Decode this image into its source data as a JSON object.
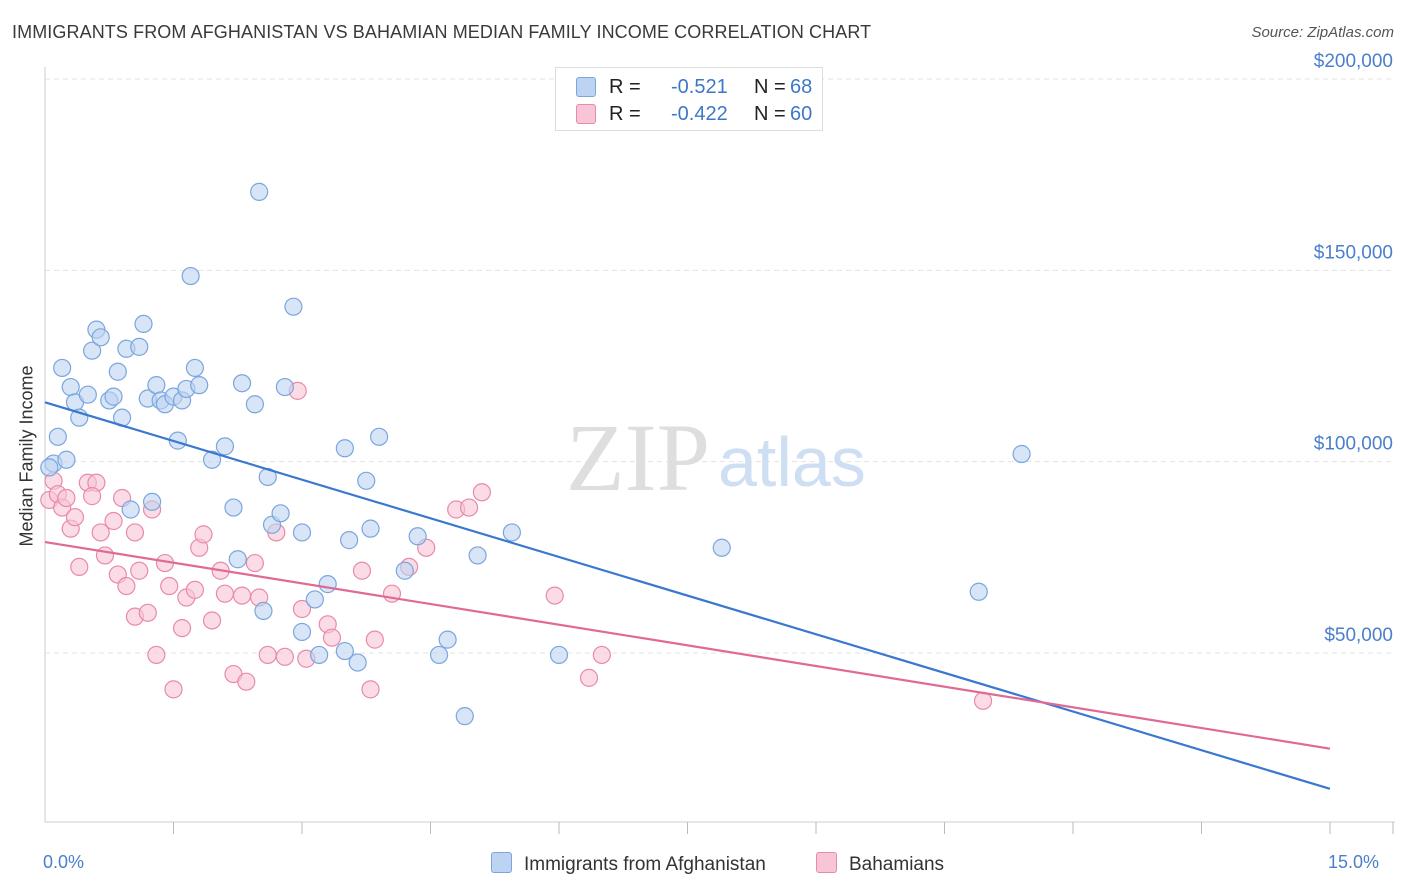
{
  "title": "IMMIGRANTS FROM AFGHANISTAN VS BAHAMIAN MEDIAN FAMILY INCOME CORRELATION CHART",
  "source": "Source: ZipAtlas.com",
  "watermark": {
    "zip": "ZIP",
    "atlas": "atlas"
  },
  "legend": {
    "r_label": "R =",
    "n_label": "N =",
    "rows": [
      {
        "r": "-0.521",
        "n": "68",
        "fill": "#bcd4f2",
        "stroke": "#7aa6de"
      },
      {
        "r": "-0.422",
        "n": "60",
        "fill": "#f8c5d6",
        "stroke": "#e88aaa"
      }
    ]
  },
  "bottom_legend": [
    {
      "label": "Immigrants from Afghanistan",
      "fill": "#bcd4f2",
      "stroke": "#7aa6de"
    },
    {
      "label": "Bahamians",
      "fill": "#f8c5d6",
      "stroke": "#e88aaa"
    }
  ],
  "chart_data": {
    "type": "scatter",
    "title": "IMMIGRANTS FROM AFGHANISTAN VS BAHAMIAN MEDIAN FAMILY INCOME CORRELATION CHART",
    "xlabel": "",
    "ylabel": "Median Family Income",
    "xlim": [
      0,
      15
    ],
    "ylim": [
      0,
      205000
    ],
    "x_tick_labels": {
      "left": "0.0%",
      "right": "15.0%"
    },
    "y_ticks": [
      {
        "value": 50000,
        "label": "$50,000"
      },
      {
        "value": 100000,
        "label": "$100,000"
      },
      {
        "value": 150000,
        "label": "$150,000"
      },
      {
        "value": 200000,
        "label": "$200,000"
      }
    ],
    "grid": true,
    "series": [
      {
        "name": "Immigrants from Afghanistan",
        "color": "#3a78d0",
        "marker_fill": "#bcd4f2",
        "marker_stroke": "#7aa6de",
        "trend": {
          "x": [
            0,
            15
          ],
          "y": [
            115500,
            14500
          ]
        },
        "points": [
          [
            0.1,
            99500
          ],
          [
            0.15,
            106500
          ],
          [
            0.2,
            124500
          ],
          [
            0.25,
            100500
          ],
          [
            0.3,
            119500
          ],
          [
            0.35,
            115500
          ],
          [
            0.4,
            111500
          ],
          [
            0.5,
            117500
          ],
          [
            0.55,
            129000
          ],
          [
            0.6,
            134500
          ],
          [
            0.65,
            132500
          ],
          [
            0.75,
            116000
          ],
          [
            0.8,
            117000
          ],
          [
            0.85,
            123500
          ],
          [
            0.9,
            111500
          ],
          [
            0.95,
            129500
          ],
          [
            1.0,
            87500
          ],
          [
            1.1,
            130000
          ],
          [
            1.15,
            136000
          ],
          [
            1.2,
            116500
          ],
          [
            1.25,
            89500
          ],
          [
            1.3,
            120000
          ],
          [
            1.35,
            116000
          ],
          [
            1.4,
            115000
          ],
          [
            1.5,
            117000
          ],
          [
            1.55,
            105500
          ],
          [
            1.6,
            116000
          ],
          [
            1.65,
            119000
          ],
          [
            1.7,
            148500
          ],
          [
            1.75,
            124500
          ],
          [
            1.8,
            120000
          ],
          [
            1.95,
            100500
          ],
          [
            2.1,
            104000
          ],
          [
            2.2,
            88000
          ],
          [
            2.25,
            74500
          ],
          [
            2.3,
            120500
          ],
          [
            2.45,
            115000
          ],
          [
            2.5,
            170500
          ],
          [
            2.55,
            61000
          ],
          [
            2.6,
            96000
          ],
          [
            2.65,
            83500
          ],
          [
            2.75,
            86500
          ],
          [
            2.8,
            119500
          ],
          [
            2.9,
            140500
          ],
          [
            3.0,
            55500
          ],
          [
            3.0,
            81500
          ],
          [
            3.15,
            64000
          ],
          [
            3.2,
            49500
          ],
          [
            3.3,
            68000
          ],
          [
            3.5,
            50500
          ],
          [
            3.5,
            103500
          ],
          [
            3.55,
            79500
          ],
          [
            3.65,
            47500
          ],
          [
            3.75,
            95000
          ],
          [
            3.8,
            82500
          ],
          [
            3.9,
            106500
          ],
          [
            4.2,
            71500
          ],
          [
            4.35,
            80500
          ],
          [
            4.6,
            49500
          ],
          [
            4.7,
            53500
          ],
          [
            4.9,
            33500
          ],
          [
            5.05,
            75500
          ],
          [
            5.45,
            81500
          ],
          [
            6.0,
            49500
          ],
          [
            7.9,
            77500
          ],
          [
            10.9,
            66000
          ],
          [
            11.4,
            102000
          ],
          [
            0.05,
            98500
          ]
        ]
      },
      {
        "name": "Bahamians",
        "color": "#e06a95",
        "marker_fill": "#f8c5d6",
        "marker_stroke": "#e88aaa",
        "trend": {
          "x": [
            0,
            15
          ],
          "y": [
            79000,
            25000
          ]
        },
        "points": [
          [
            0.05,
            90000
          ],
          [
            0.1,
            95000
          ],
          [
            0.15,
            91500
          ],
          [
            0.2,
            88000
          ],
          [
            0.25,
            90500
          ],
          [
            0.3,
            82500
          ],
          [
            0.35,
            85500
          ],
          [
            0.4,
            72500
          ],
          [
            0.5,
            94500
          ],
          [
            0.6,
            94500
          ],
          [
            0.65,
            81500
          ],
          [
            0.7,
            75500
          ],
          [
            0.8,
            84500
          ],
          [
            0.85,
            70500
          ],
          [
            0.9,
            90500
          ],
          [
            0.95,
            67500
          ],
          [
            1.05,
            59500
          ],
          [
            1.1,
            71500
          ],
          [
            1.2,
            60500
          ],
          [
            1.25,
            87500
          ],
          [
            1.3,
            49500
          ],
          [
            1.4,
            73500
          ],
          [
            1.45,
            67500
          ],
          [
            1.5,
            40500
          ],
          [
            1.6,
            56500
          ],
          [
            1.65,
            64500
          ],
          [
            1.75,
            66500
          ],
          [
            1.8,
            77500
          ],
          [
            1.85,
            81000
          ],
          [
            1.95,
            58500
          ],
          [
            2.05,
            71500
          ],
          [
            2.1,
            65500
          ],
          [
            2.2,
            44500
          ],
          [
            2.3,
            65000
          ],
          [
            2.35,
            42500
          ],
          [
            2.45,
            73500
          ],
          [
            2.5,
            64500
          ],
          [
            2.6,
            49500
          ],
          [
            2.7,
            81500
          ],
          [
            2.8,
            49000
          ],
          [
            2.95,
            118500
          ],
          [
            3.0,
            61500
          ],
          [
            3.05,
            48500
          ],
          [
            3.3,
            57500
          ],
          [
            3.35,
            54000
          ],
          [
            3.7,
            71500
          ],
          [
            3.8,
            40500
          ],
          [
            3.85,
            53500
          ],
          [
            4.05,
            65500
          ],
          [
            4.25,
            72500
          ],
          [
            4.45,
            77500
          ],
          [
            4.8,
            87500
          ],
          [
            4.95,
            88000
          ],
          [
            5.1,
            92000
          ],
          [
            5.95,
            65000
          ],
          [
            6.35,
            43500
          ],
          [
            6.5,
            49500
          ],
          [
            10.95,
            37500
          ],
          [
            0.55,
            91000
          ],
          [
            1.05,
            81500
          ]
        ]
      }
    ]
  }
}
